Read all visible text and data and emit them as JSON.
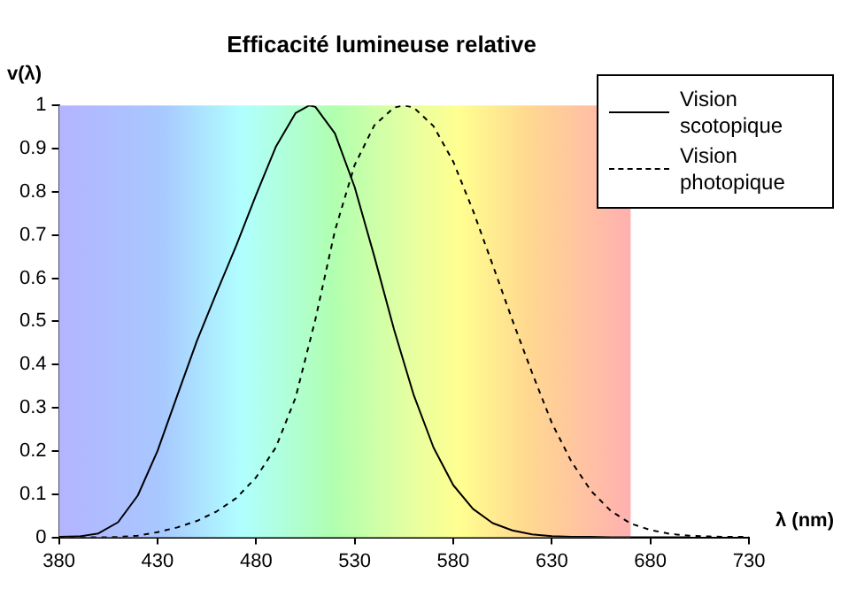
{
  "chart_data": {
    "type": "line",
    "title": "Efficacité lumineuse relative",
    "xlabel": "λ (nm)",
    "ylabel": "v(λ)",
    "xlim": [
      380,
      730
    ],
    "xticks": [
      380,
      430,
      480,
      530,
      580,
      630,
      680,
      730
    ],
    "ylim": [
      0,
      1
    ],
    "yticks": [
      0,
      0.1,
      0.2,
      0.3,
      0.4,
      0.5,
      0.6,
      0.7,
      0.8,
      0.9,
      1
    ],
    "grid": false,
    "bands": [
      {
        "axis": "x",
        "from": 380,
        "to": 670
      }
    ],
    "legend": "top right",
    "marker": "none",
    "series": [
      {
        "name": "Vision scotopique",
        "color": "#000000",
        "line_style": "solid",
        "x": [
          380,
          390,
          400,
          410,
          420,
          430,
          440,
          450,
          460,
          470,
          480,
          490,
          500,
          507,
          510,
          520,
          530,
          540,
          550,
          560,
          570,
          580,
          590,
          600,
          610,
          620,
          630,
          640,
          650,
          660,
          670,
          680,
          690,
          700
        ],
        "values": [
          0.001,
          0.002,
          0.009,
          0.035,
          0.097,
          0.2,
          0.328,
          0.455,
          0.567,
          0.676,
          0.793,
          0.904,
          0.982,
          1,
          0.997,
          0.935,
          0.811,
          0.65,
          0.481,
          0.329,
          0.208,
          0.121,
          0.066,
          0.033,
          0.016,
          0.007,
          0.003,
          0.001,
          0.001,
          0,
          0,
          0,
          0,
          0
        ]
      },
      {
        "name": "Vision photopique",
        "color": "#000000",
        "line_style": "dashed",
        "x": [
          380,
          390,
          400,
          410,
          420,
          430,
          440,
          450,
          460,
          470,
          480,
          490,
          500,
          510,
          520,
          530,
          540,
          550,
          555,
          560,
          570,
          580,
          590,
          600,
          610,
          620,
          630,
          640,
          650,
          660,
          670,
          680,
          690,
          700,
          710,
          720,
          730
        ],
        "values": [
          0,
          0,
          0,
          0.001,
          0.004,
          0.012,
          0.023,
          0.038,
          0.06,
          0.091,
          0.139,
          0.208,
          0.323,
          0.503,
          0.71,
          0.862,
          0.954,
          0.995,
          1,
          0.995,
          0.952,
          0.87,
          0.757,
          0.631,
          0.503,
          0.381,
          0.265,
          0.175,
          0.107,
          0.061,
          0.032,
          0.017,
          0.008,
          0.004,
          0.002,
          0.001,
          0.001
        ]
      }
    ]
  }
}
